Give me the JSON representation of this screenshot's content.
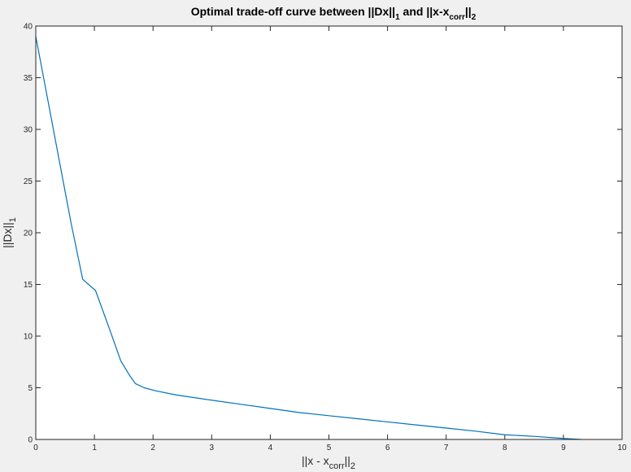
{
  "chart_data": {
    "type": "line",
    "title": {
      "prefix": "Optimal trade-off curve between ||Dx||",
      "sub1": "1",
      "mid": " and ||x-x",
      "sub2": "corr",
      "suffix": "||",
      "sub3": "2"
    },
    "xlabel": {
      "prefix": "||x - x",
      "sub1": "corr",
      "suffix": "||",
      "sub2": "2"
    },
    "ylabel": {
      "prefix": "||Dx||",
      "sub1": "1"
    },
    "xlim": [
      0,
      10
    ],
    "ylim": [
      0,
      40
    ],
    "xticks": [
      0,
      1,
      2,
      3,
      4,
      5,
      6,
      7,
      8,
      9,
      10
    ],
    "yticks": [
      0,
      5,
      10,
      15,
      20,
      25,
      30,
      35,
      40
    ],
    "grid": false,
    "series": [
      {
        "color": "#0072bd",
        "x": [
          0,
          0.2,
          0.4,
          0.6,
          0.8,
          1.02,
          1.25,
          1.45,
          1.6,
          1.7,
          1.85,
          2.05,
          2.4,
          3.0,
          3.5,
          4.0,
          4.5,
          5.0,
          5.5,
          6.0,
          6.5,
          7.0,
          7.5,
          8.0,
          8.5,
          9.0,
          9.3
        ],
        "y": [
          39.0,
          33.0,
          27.0,
          21.0,
          15.5,
          14.4,
          10.8,
          7.6,
          6.2,
          5.4,
          5.0,
          4.7,
          4.3,
          3.8,
          3.4,
          3.0,
          2.6,
          2.3,
          2.0,
          1.7,
          1.4,
          1.1,
          0.8,
          0.45,
          0.3,
          0.1,
          0.0
        ]
      }
    ]
  },
  "colors": {
    "figure_bg": "#f0f0f0",
    "axes_bg": "#ffffff",
    "axis_color": "#262626",
    "line_color": "#0072bd"
  }
}
